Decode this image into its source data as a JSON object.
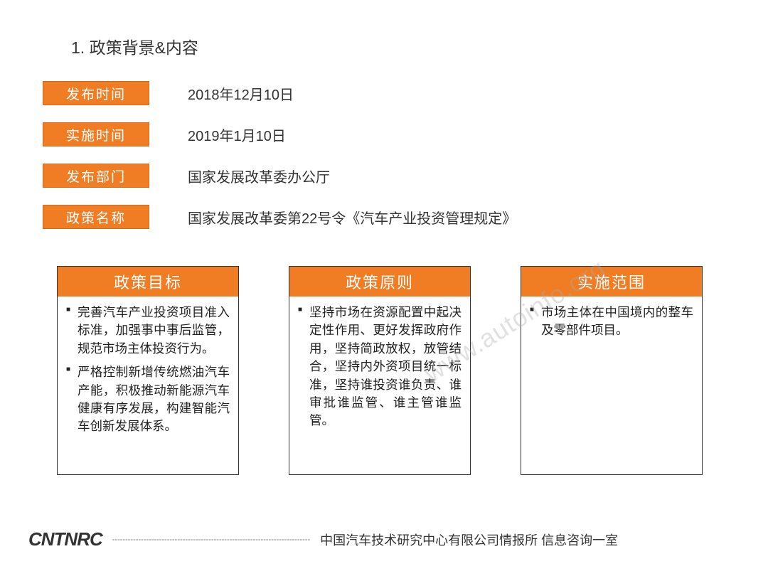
{
  "title": "1. 政策背景&内容",
  "info_rows": [
    {
      "label": "发布时间",
      "value": "2018年12月10日"
    },
    {
      "label": "实施时间",
      "value": "2019年1月10日"
    },
    {
      "label": "发布部门",
      "value": "国家发展改革委办公厅"
    },
    {
      "label": "政策名称",
      "value": "国家发展改革委第22号令《汽车产业投资管理规定》"
    }
  ],
  "cards": [
    {
      "header": "政策目标",
      "items": [
        "完善汽车产业投资项目准入标准，加强事中事后监管，规范市场主体投资行为。",
        "严格控制新增传统燃油汽车产能，积极推动新能源汽车健康有序发展，构建智能汽车创新发展体系。"
      ]
    },
    {
      "header": "政策原则",
      "items": [
        "坚持市场在资源配置中起决定性作用、更好发挥政府作用，坚持简政放权，放管结合，坚持内外资项目统一标准，坚持谁投资谁负责、谁审批谁监管、谁主管谁监管。"
      ]
    },
    {
      "header": "实施范围",
      "items": [
        "市场主体在中国境内的整车及零部件项目。"
      ]
    }
  ],
  "watermark": "www.autoinfo.org",
  "footer": {
    "logo": "CNTNRC",
    "dashes": "----------------------------------------------------------------------------",
    "text": "中国汽车技术研究中心有限公司情报所  信息咨询一室"
  },
  "colors": {
    "accent": "#f07d24",
    "accent_border": "#d66a18",
    "text": "#333333",
    "watermark": "rgba(170,170,170,0.35)"
  }
}
